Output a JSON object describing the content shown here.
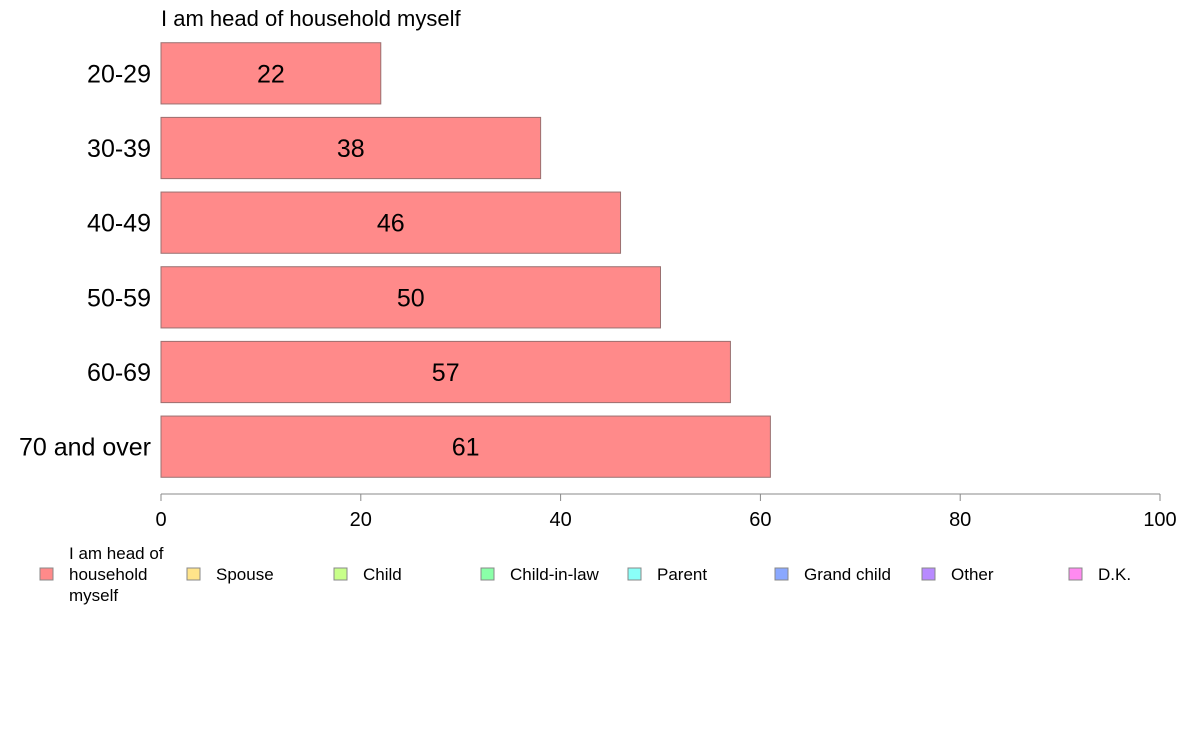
{
  "chart_data": {
    "type": "bar",
    "orientation": "horizontal",
    "title": "I am head of household myself",
    "categories": [
      "20-29",
      "30-39",
      "40-49",
      "50-59",
      "60-69",
      "70 and over"
    ],
    "series": [
      {
        "name": "I am head of household myself",
        "values": [
          22,
          38,
          46,
          50,
          57,
          61
        ]
      }
    ],
    "xlim": [
      0,
      100
    ],
    "xticks": [
      "0",
      "20",
      "40",
      "60",
      "80",
      "100"
    ],
    "grid": false,
    "legend": {
      "placement": "bottom",
      "entries": [
        {
          "label_lines": [
            "I am head of",
            "household",
            "myself"
          ],
          "color": "#ff8a8a"
        },
        {
          "label_lines": [
            "Spouse"
          ],
          "color": "#ffe48a"
        },
        {
          "label_lines": [
            "Child"
          ],
          "color": "#c8ff8a"
        },
        {
          "label_lines": [
            "Child-in-law"
          ],
          "color": "#8affa8"
        },
        {
          "label_lines": [
            "Parent"
          ],
          "color": "#8afff8"
        },
        {
          "label_lines": [
            "Grand child"
          ],
          "color": "#8aa8ff"
        },
        {
          "label_lines": [
            "Other"
          ],
          "color": "#b88aff"
        },
        {
          "label_lines": [
            "D.K."
          ],
          "color": "#ff8af0"
        }
      ]
    },
    "bar_color": "#ff8a8a",
    "bar_border_color": "#9a7070",
    "axis_color": "#888888"
  }
}
